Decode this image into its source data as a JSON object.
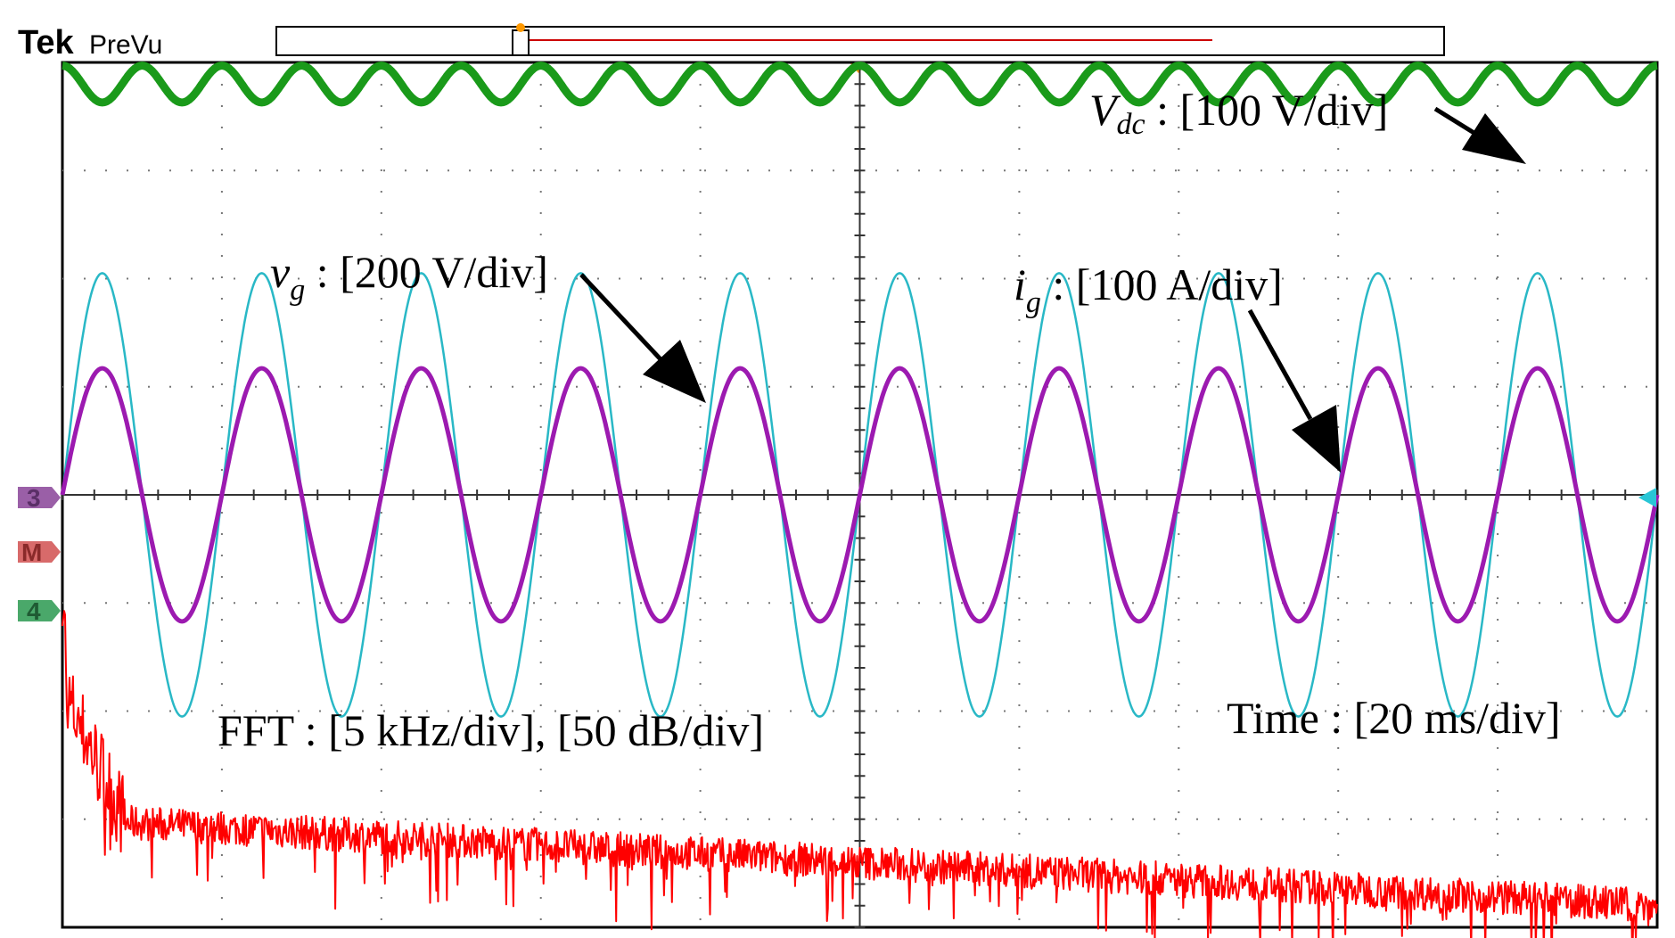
{
  "header": {
    "brand": "Tek",
    "mode": "PreVu"
  },
  "chart_data": {
    "type": "line",
    "title": "",
    "grid": true,
    "divisions": {
      "x": 10,
      "y": 8
    },
    "timebase_ms_per_div": 20,
    "series": [
      {
        "name": "Vdc",
        "color": "#1a9a1a",
        "shape": "sine",
        "cycles_on_screen": 20,
        "amplitude_div": 0.17,
        "center_div": 3.8,
        "phase_deg": 90
      },
      {
        "name": "vg",
        "color": "#29b8c6",
        "shape": "sine",
        "cycles_on_screen": 10,
        "amplitude_div": 2.05,
        "center_div": 0,
        "phase_deg": 0
      },
      {
        "name": "ig",
        "color": "#9c1ab0",
        "shape": "sine",
        "cycles_on_screen": 10,
        "amplitude_div": 1.17,
        "center_div": 0,
        "phase_deg": 0
      },
      {
        "name": "FFT",
        "color": "#ff0000",
        "shape": "noise",
        "start_level_div": -3.0,
        "end_level_div": -3.8,
        "noise_div": 0.16
      }
    ],
    "annotations": {
      "vdc": {
        "symbol": "V",
        "sub": "dc",
        "text": " : [100 V/div]"
      },
      "vg": {
        "symbol": "v",
        "sub": "g",
        "text": " : [200 V/div]"
      },
      "ig": {
        "symbol": "i",
        "sub": "g",
        "text": " : [100 A/div]"
      },
      "fft": {
        "text": "FFT : [5 kHz/div], [50 dB/div]"
      },
      "time": {
        "text": "Time : [20 ms/div]"
      }
    },
    "channel_markers": [
      {
        "label": "3",
        "color": "#9a5fa7"
      },
      {
        "label": "M",
        "color": "#d86a6a"
      },
      {
        "label": "4",
        "color": "#4aa86a"
      }
    ]
  }
}
